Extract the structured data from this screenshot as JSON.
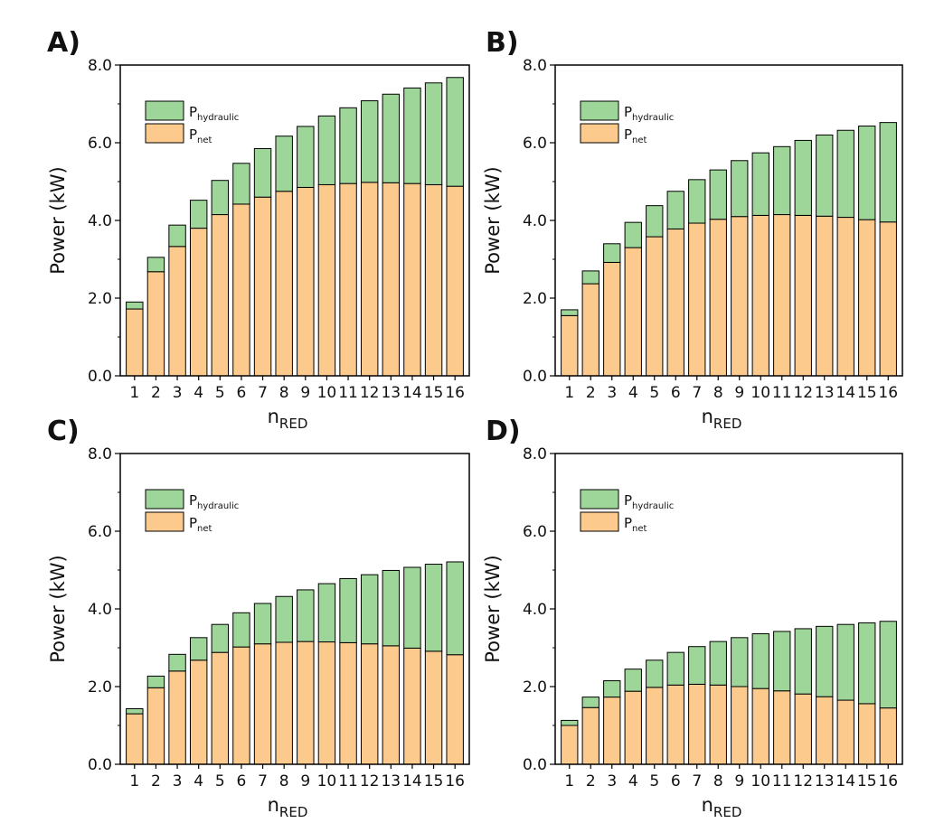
{
  "colors": {
    "net": "#fdca8e",
    "hydraulic": "#9ed69a",
    "stroke": "#000000"
  },
  "chart_data": [
    {
      "panel_label": "A)",
      "type": "bar",
      "stacked": true,
      "categories": [
        "1",
        "2",
        "3",
        "4",
        "5",
        "6",
        "7",
        "8",
        "9",
        "10",
        "11",
        "12",
        "13",
        "14",
        "15",
        "16"
      ],
      "series": [
        {
          "name": "P",
          "subscript": "net",
          "values": [
            1.72,
            2.68,
            3.33,
            3.8,
            4.15,
            4.42,
            4.6,
            4.75,
            4.85,
            4.92,
            4.95,
            4.98,
            4.97,
            4.95,
            4.92,
            4.88
          ]
        },
        {
          "name": "P",
          "subscript": "hydraulic",
          "values": [
            0.18,
            0.37,
            0.55,
            0.72,
            0.88,
            1.05,
            1.25,
            1.42,
            1.57,
            1.77,
            1.95,
            2.1,
            2.28,
            2.46,
            2.62,
            2.8
          ]
        }
      ],
      "ylim": [
        0,
        8
      ],
      "yticks": [
        "0.0",
        "2.0",
        "4.0",
        "6.0",
        "8.0"
      ],
      "ylabel": "Power (kW)",
      "xlabel": "n",
      "xlabel_sub": "RED",
      "legend": "top-left"
    },
    {
      "panel_label": "B)",
      "type": "bar",
      "stacked": true,
      "categories": [
        "1",
        "2",
        "3",
        "4",
        "5",
        "6",
        "7",
        "8",
        "9",
        "10",
        "11",
        "12",
        "13",
        "14",
        "15",
        "16"
      ],
      "series": [
        {
          "name": "P",
          "subscript": "net",
          "values": [
            1.55,
            2.37,
            2.92,
            3.3,
            3.58,
            3.78,
            3.93,
            4.03,
            4.1,
            4.13,
            4.15,
            4.13,
            4.11,
            4.08,
            4.02,
            3.96
          ]
        },
        {
          "name": "P",
          "subscript": "hydraulic",
          "values": [
            0.15,
            0.33,
            0.48,
            0.65,
            0.8,
            0.97,
            1.12,
            1.27,
            1.44,
            1.61,
            1.75,
            1.93,
            2.09,
            2.24,
            2.41,
            2.56
          ]
        }
      ],
      "ylim": [
        0,
        8
      ],
      "yticks": [
        "0.0",
        "2.0",
        "4.0",
        "6.0",
        "8.0"
      ],
      "ylabel": "Power (kW)",
      "xlabel": "n",
      "xlabel_sub": "RED",
      "legend": "top-left"
    },
    {
      "panel_label": "C)",
      "type": "bar",
      "stacked": true,
      "categories": [
        "1",
        "2",
        "3",
        "4",
        "5",
        "6",
        "7",
        "8",
        "9",
        "10",
        "11",
        "12",
        "13",
        "14",
        "15",
        "16"
      ],
      "series": [
        {
          "name": "P",
          "subscript": "net",
          "values": [
            1.3,
            1.97,
            2.4,
            2.68,
            2.88,
            3.02,
            3.1,
            3.14,
            3.16,
            3.15,
            3.13,
            3.1,
            3.05,
            2.99,
            2.91,
            2.82
          ]
        },
        {
          "name": "P",
          "subscript": "hydraulic",
          "values": [
            0.13,
            0.3,
            0.43,
            0.58,
            0.72,
            0.88,
            1.04,
            1.18,
            1.33,
            1.5,
            1.65,
            1.78,
            1.94,
            2.08,
            2.24,
            2.39
          ]
        }
      ],
      "ylim": [
        0,
        8
      ],
      "yticks": [
        "0.0",
        "2.0",
        "4.0",
        "6.0",
        "8.0"
      ],
      "ylabel": "Power (kW)",
      "xlabel": "n",
      "xlabel_sub": "RED",
      "legend": "top-left"
    },
    {
      "panel_label": "D)",
      "type": "bar",
      "stacked": true,
      "categories": [
        "1",
        "2",
        "3",
        "4",
        "5",
        "6",
        "7",
        "8",
        "9",
        "10",
        "11",
        "12",
        "13",
        "14",
        "15",
        "16"
      ],
      "series": [
        {
          "name": "P",
          "subscript": "net",
          "values": [
            1.0,
            1.46,
            1.73,
            1.88,
            1.98,
            2.04,
            2.06,
            2.04,
            2.0,
            1.95,
            1.89,
            1.81,
            1.74,
            1.65,
            1.56,
            1.45
          ]
        },
        {
          "name": "P",
          "subscript": "hydraulic",
          "values": [
            0.13,
            0.27,
            0.42,
            0.57,
            0.7,
            0.84,
            0.97,
            1.12,
            1.26,
            1.41,
            1.53,
            1.68,
            1.81,
            1.95,
            2.08,
            2.23
          ]
        }
      ],
      "ylim": [
        0,
        8
      ],
      "yticks": [
        "0.0",
        "2.0",
        "4.0",
        "6.0",
        "8.0"
      ],
      "ylabel": "Power (kW)",
      "xlabel": "n",
      "xlabel_sub": "RED",
      "legend": "top-left"
    }
  ]
}
